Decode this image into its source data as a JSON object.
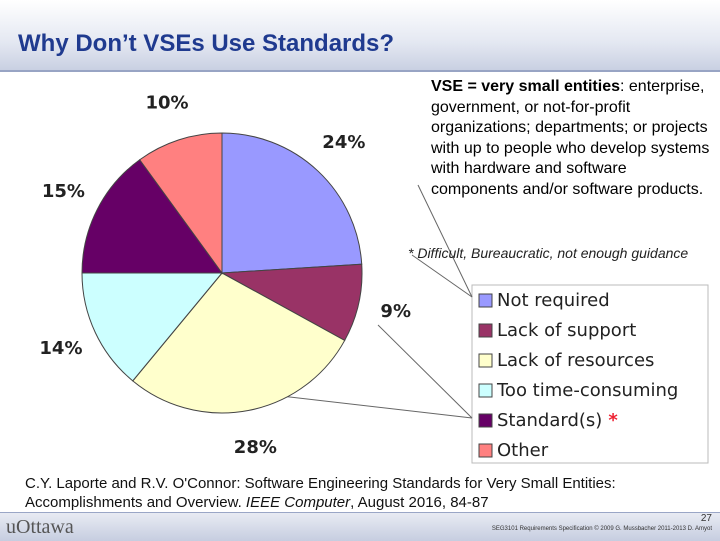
{
  "slide": {
    "title": "Why Don’t VSEs Use Standards?"
  },
  "definition": {
    "term": "VSE = very small entities",
    "text": ": enterprise, government, or not-for-profit organizations; departments; or projects with up to  people who develop systems with hardware and software components and/or software products."
  },
  "footnote": "* Difficult, Bureaucratic, not enough guidance",
  "citation": {
    "before": "C.Y. Laporte and R.V. O'Connor: Software Engineering Standards for Very Small Entities: Accomplishments and Overview. ",
    "journal": "IEEE Computer",
    "after": ", August 2016, 84-87"
  },
  "footer": {
    "logo": "uOttawa",
    "page": "27",
    "course": "SEG3101 Requirements Specification © 2009 G. Mussbacher 2011-2013 D. Amyot"
  },
  "chart_data": {
    "type": "pie",
    "categories": [
      "Not required",
      "Lack of support",
      "Lack of resources",
      "Too time-consuming",
      "Standard(s)",
      "Other"
    ],
    "values": [
      24,
      9,
      28,
      14,
      15,
      10
    ],
    "value_labels": [
      "24%",
      "9%",
      "28%",
      "14%",
      "15%",
      "10%"
    ],
    "colors": [
      "#9999ff",
      "#993366",
      "#ffffcc",
      "#ccffff",
      "#660066",
      "#ff8080"
    ],
    "legend_note": "*"
  }
}
